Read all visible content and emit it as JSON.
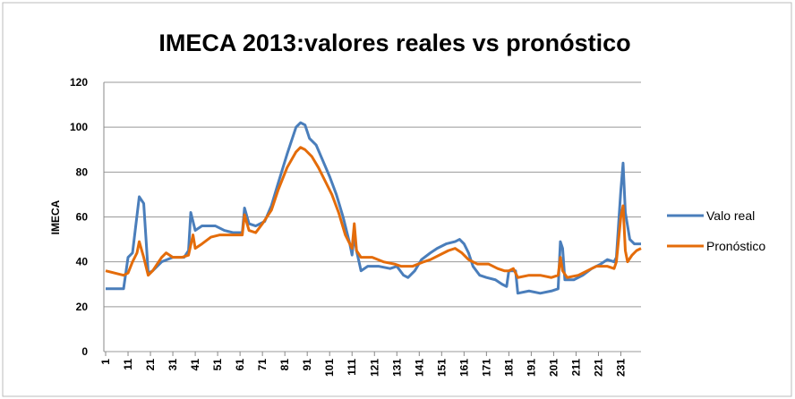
{
  "chart_data": {
    "type": "line",
    "title": "IMECA 2013:valores reales vs pronóstico",
    "ylabel": "IMECA",
    "xlim": [
      1,
      240
    ],
    "xticks": [
      1,
      11,
      21,
      31,
      41,
      51,
      61,
      71,
      81,
      91,
      101,
      111,
      121,
      131,
      141,
      151,
      161,
      171,
      181,
      191,
      201,
      211,
      221,
      231
    ],
    "ylim": [
      0,
      120
    ],
    "yticks": [
      0,
      20,
      40,
      60,
      80,
      100,
      120
    ],
    "grid": true,
    "legend": "right",
    "series": [
      {
        "name": "Valo real",
        "color": "#4a7ebb",
        "x": [
          1,
          9,
          11,
          13,
          16,
          18,
          20,
          22,
          26,
          31,
          36,
          38,
          39,
          41,
          44,
          50,
          54,
          58,
          62,
          63,
          65,
          68,
          72,
          75,
          78,
          82,
          86,
          88,
          90,
          92,
          95,
          98,
          101,
          104,
          107,
          110,
          111,
          112,
          113,
          115,
          118,
          123,
          128,
          131,
          134,
          136,
          139,
          142,
          146,
          149,
          153,
          157,
          159,
          161,
          163,
          165,
          168,
          171,
          175,
          178,
          180,
          181,
          184,
          185,
          190,
          195,
          200,
          203,
          204,
          205,
          206,
          210,
          214,
          218,
          222,
          225,
          228,
          229,
          231,
          232,
          233,
          235,
          237,
          240
        ],
        "values": [
          28,
          28,
          42,
          44,
          69,
          66,
          35,
          36,
          40,
          42,
          42,
          45,
          62,
          54,
          56,
          56,
          54,
          53,
          53,
          64,
          57,
          56,
          58,
          65,
          75,
          88,
          100,
          102,
          101,
          95,
          92,
          85,
          78,
          70,
          60,
          48,
          43,
          52,
          45,
          36,
          38,
          38,
          37,
          38,
          34,
          33,
          36,
          41,
          44,
          46,
          48,
          49,
          50,
          48,
          44,
          38,
          34,
          33,
          32,
          30,
          29,
          36,
          36,
          26,
          27,
          26,
          27,
          28,
          49,
          46,
          32,
          32,
          34,
          37,
          39,
          41,
          40,
          42,
          72,
          84,
          62,
          50,
          48,
          48
        ]
      },
      {
        "name": "Pronóstico",
        "color": "#e46c0a",
        "x": [
          1,
          5,
          9,
          11,
          13,
          15,
          16,
          18,
          20,
          22,
          26,
          28,
          31,
          35,
          38,
          40,
          41,
          44,
          48,
          52,
          58,
          62,
          63,
          65,
          68,
          71,
          75,
          78,
          82,
          86,
          88,
          90,
          93,
          96,
          99,
          102,
          105,
          108,
          111,
          112,
          113,
          115,
          120,
          125,
          130,
          133,
          138,
          143,
          146,
          150,
          154,
          157,
          160,
          163,
          167,
          172,
          176,
          179,
          181,
          183,
          185,
          190,
          195,
          200,
          203,
          204,
          205,
          207,
          212,
          216,
          220,
          225,
          228,
          229,
          231,
          232,
          233,
          234,
          236,
          238,
          240
        ],
        "values": [
          36,
          35,
          34,
          35,
          40,
          44,
          49,
          42,
          34,
          36,
          42,
          44,
          42,
          42,
          43,
          52,
          46,
          48,
          51,
          52,
          52,
          52,
          61,
          54,
          53,
          57,
          63,
          72,
          82,
          89,
          91,
          90,
          87,
          82,
          76,
          70,
          62,
          52,
          46,
          57,
          45,
          42,
          42,
          40,
          39,
          38,
          38,
          40,
          41,
          43,
          45,
          46,
          44,
          41,
          39,
          39,
          37,
          36,
          36,
          37,
          33,
          34,
          34,
          33,
          34,
          42,
          36,
          33,
          34,
          36,
          38,
          38,
          37,
          40,
          60,
          65,
          45,
          40,
          43,
          45,
          46
        ]
      }
    ]
  }
}
